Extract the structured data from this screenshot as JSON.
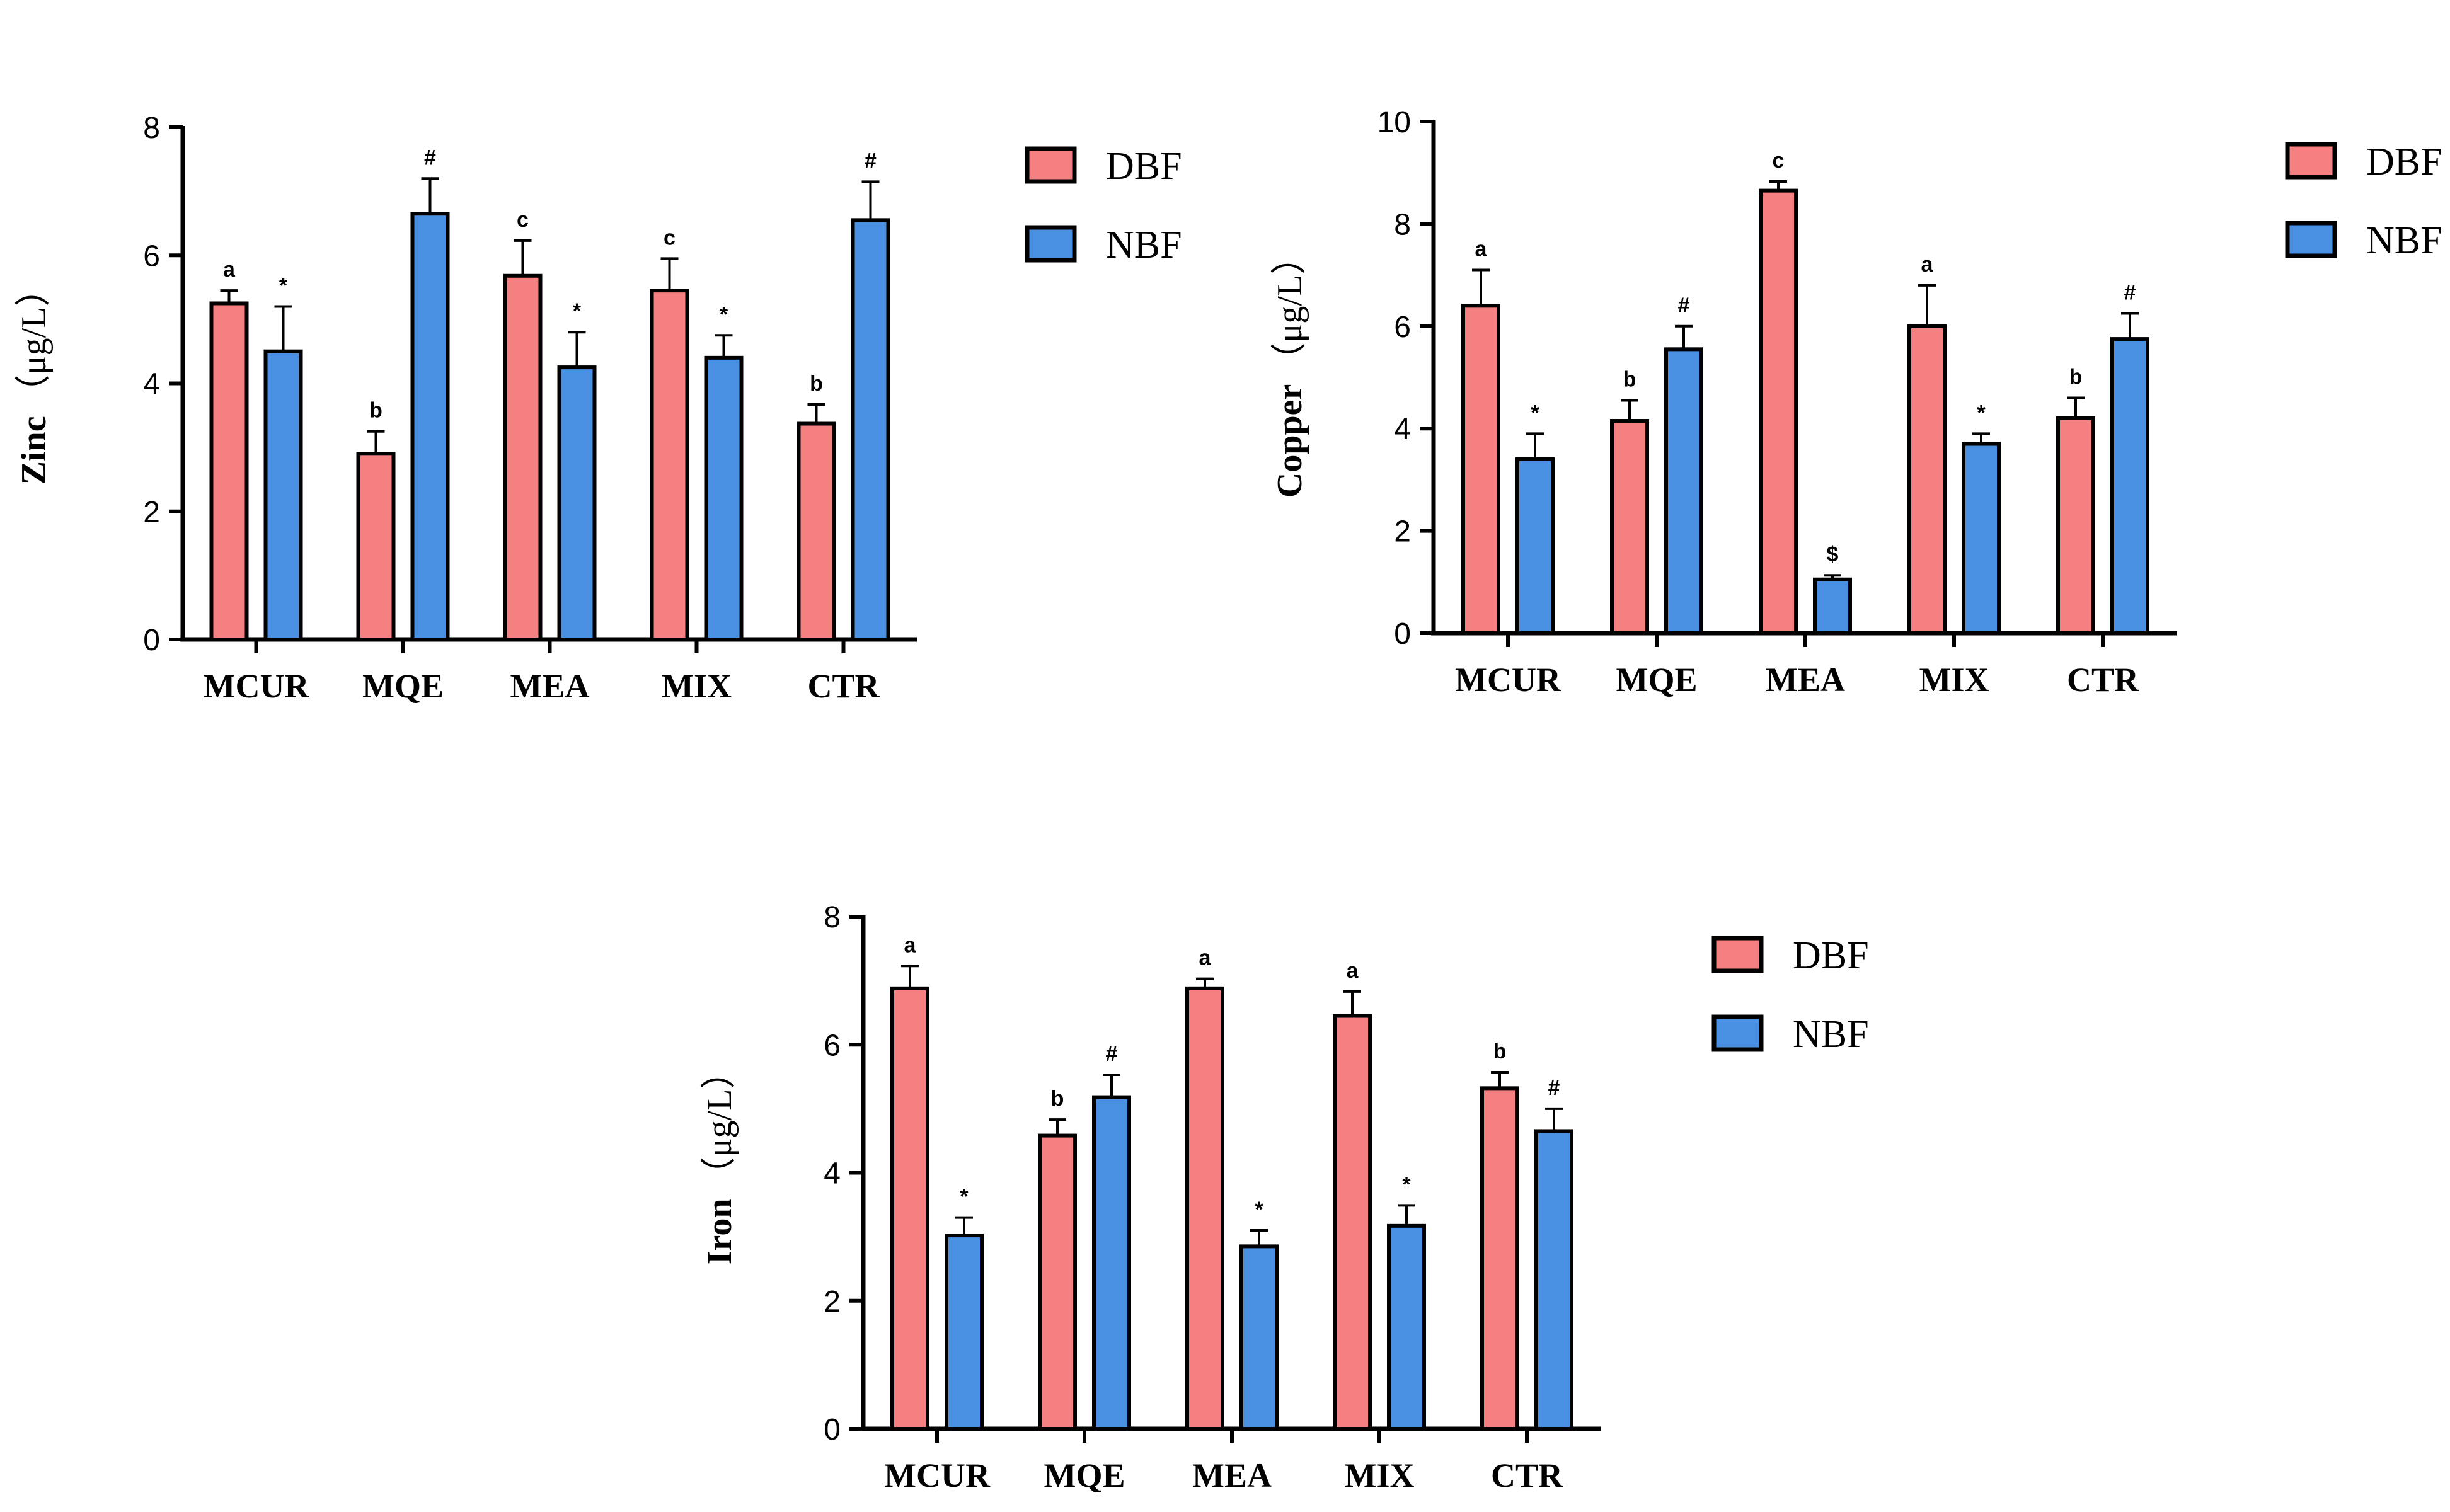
{
  "colors": {
    "DBF": "#F48081",
    "NBF": "#4A90E2",
    "axis": "#000000"
  },
  "chart_data": [
    {
      "id": "zinc",
      "type": "bar",
      "title": "Zinc",
      "ylabel_main": "Zinc",
      "ylabel_unit": "（μg/L）",
      "ylim": [
        0,
        8
      ],
      "yticks": [
        0,
        2,
        4,
        6,
        8
      ],
      "categories": [
        "MCUR",
        "MQE",
        "MEA",
        "MIX",
        "CTR"
      ],
      "legend": [
        "DBF",
        "NBF"
      ],
      "series": [
        {
          "name": "DBF",
          "values": [
            5.25,
            2.9,
            5.68,
            5.45,
            3.37
          ],
          "errors": [
            0.2,
            0.35,
            0.55,
            0.5,
            0.3
          ],
          "labels": [
            "a",
            "b",
            "c",
            "c",
            "b"
          ]
        },
        {
          "name": "NBF",
          "values": [
            4.5,
            6.65,
            4.25,
            4.4,
            6.55
          ],
          "errors": [
            0.7,
            0.55,
            0.55,
            0.35,
            0.6
          ],
          "labels": [
            "*",
            "#",
            "*",
            "*",
            "#"
          ]
        }
      ]
    },
    {
      "id": "copper",
      "type": "bar",
      "title": "Copper",
      "ylabel_main": "Copper",
      "ylabel_unit": "（μg/L）",
      "ylim": [
        0,
        10
      ],
      "yticks": [
        0,
        2,
        4,
        6,
        8,
        10
      ],
      "categories": [
        "MCUR",
        "MQE",
        "MEA",
        "MIX",
        "CTR"
      ],
      "legend": [
        "DBF",
        "NBF"
      ],
      "series": [
        {
          "name": "DBF",
          "values": [
            6.4,
            4.15,
            8.65,
            6.0,
            4.2
          ],
          "errors": [
            0.7,
            0.4,
            0.18,
            0.8,
            0.4
          ],
          "labels": [
            "a",
            "b",
            "c",
            "a",
            "b"
          ]
        },
        {
          "name": "NBF",
          "values": [
            3.4,
            5.55,
            1.05,
            3.7,
            5.75
          ],
          "errors": [
            0.5,
            0.45,
            0.08,
            0.2,
            0.5
          ],
          "labels": [
            "*",
            "#",
            "$",
            "*",
            "#"
          ]
        }
      ]
    },
    {
      "id": "iron",
      "type": "bar",
      "title": "Iron",
      "ylabel_main": "Iron",
      "ylabel_unit": "（μg/L）",
      "ylim": [
        0,
        8
      ],
      "yticks": [
        0,
        2,
        4,
        6,
        8
      ],
      "categories": [
        "MCUR",
        "MQE",
        "MEA",
        "MIX",
        "CTR"
      ],
      "legend": [
        "DBF",
        "NBF"
      ],
      "series": [
        {
          "name": "DBF",
          "values": [
            6.88,
            4.58,
            6.88,
            6.45,
            5.32
          ],
          "errors": [
            0.35,
            0.25,
            0.15,
            0.38,
            0.25
          ],
          "labels": [
            "a",
            "b",
            "a",
            "a",
            "b"
          ]
        },
        {
          "name": "NBF",
          "values": [
            3.02,
            5.18,
            2.85,
            3.17,
            4.65
          ],
          "errors": [
            0.28,
            0.35,
            0.25,
            0.32,
            0.35
          ],
          "labels": [
            "*",
            "#",
            "*",
            "*",
            "#"
          ]
        }
      ]
    }
  ]
}
